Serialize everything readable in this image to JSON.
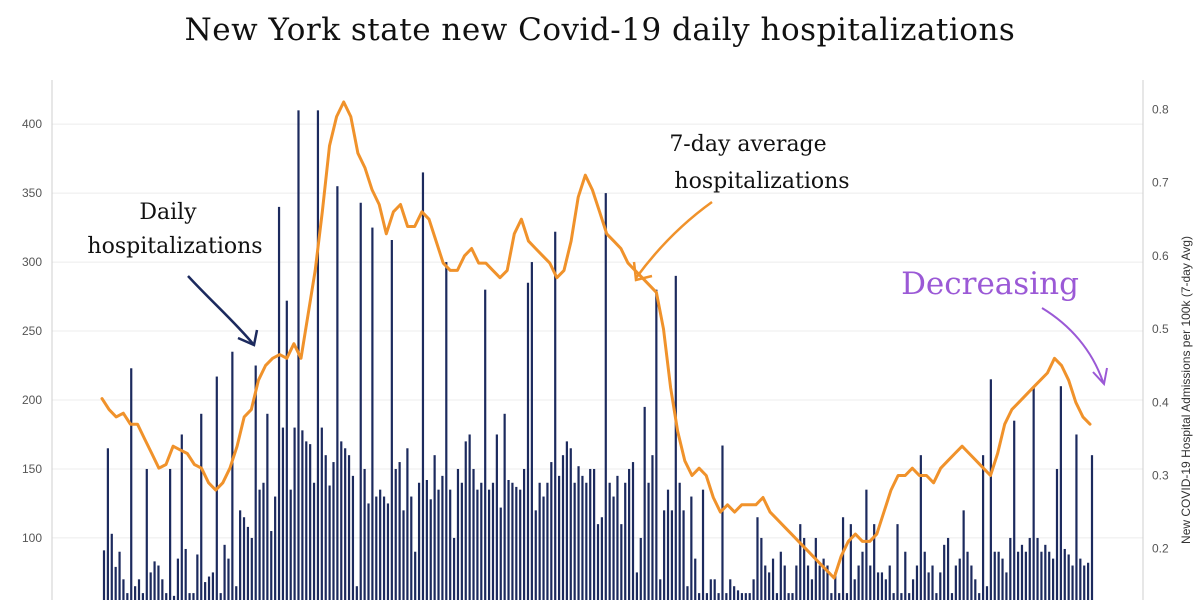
{
  "chart_data": {
    "type": "bar+line",
    "title": "New York state new Covid-19 daily hospitalizations",
    "xlabel": "",
    "ylabel": "",
    "y2label": "New COVID-19 Hospital Admissions per 100k (7-day Avg)",
    "ylim": [
      55,
      432
    ],
    "y2lim": [
      0.13,
      0.84
    ],
    "yticks": [
      100,
      150,
      200,
      250,
      300,
      350,
      400
    ],
    "y2ticks": [
      0.2,
      0.3,
      0.4,
      0.5,
      0.6,
      0.7,
      0.8
    ],
    "grid": true,
    "series": [
      {
        "kind": "bar",
        "axis": "left",
        "values": [
          91,
          165,
          103,
          79,
          90,
          70,
          60,
          223,
          65,
          70,
          60,
          150,
          75,
          83,
          80,
          70,
          60,
          150,
          58,
          85,
          175,
          92,
          60,
          60,
          88,
          190,
          68,
          72,
          75,
          217,
          60,
          95,
          85,
          235,
          65,
          120,
          115,
          108,
          100,
          225,
          135,
          140,
          190,
          105,
          130,
          340,
          180,
          272,
          135,
          180,
          410,
          178,
          170,
          168,
          140,
          410,
          180,
          160,
          138,
          155,
          355,
          170,
          165,
          160,
          145,
          65,
          343,
          150,
          125,
          325,
          130,
          135,
          130,
          125,
          316,
          150,
          155,
          120,
          165,
          130,
          90,
          140,
          365,
          142,
          128,
          160,
          135,
          145,
          300,
          135,
          100,
          150,
          140,
          170,
          175,
          150,
          135,
          140,
          280,
          135,
          140,
          175,
          122,
          190,
          142,
          140,
          137,
          135,
          150,
          285,
          300,
          120,
          140,
          130,
          140,
          155,
          322,
          145,
          160,
          170,
          165,
          140,
          152,
          145,
          140,
          150,
          150,
          110,
          115,
          350,
          140,
          130,
          145,
          110,
          140,
          150,
          155,
          75,
          100,
          195,
          140,
          160,
          280,
          70,
          120,
          135,
          120,
          290,
          140,
          120,
          65,
          130,
          85,
          60,
          135,
          60,
          70,
          70,
          60,
          167,
          60,
          70,
          65,
          62,
          60,
          60,
          60,
          70,
          115,
          100,
          80,
          75,
          85,
          60,
          90,
          80,
          60,
          60,
          80,
          110,
          100,
          80,
          70,
          100,
          80,
          85,
          80,
          60,
          75,
          60,
          115,
          60,
          110,
          70,
          80,
          90,
          135,
          80,
          110,
          75,
          75,
          70,
          80,
          60,
          110,
          60,
          90,
          60,
          70,
          80,
          160,
          90,
          75,
          80,
          60,
          75,
          95,
          100,
          60,
          80,
          85,
          120,
          90,
          80,
          70,
          60,
          160,
          65,
          215,
          90,
          90,
          85,
          75,
          100,
          185,
          90,
          95,
          90,
          100,
          210,
          100,
          90,
          95,
          90,
          85,
          150,
          210,
          92,
          88,
          80,
          175,
          85,
          80,
          82,
          160
        ]
      },
      {
        "kind": "line",
        "axis": "right",
        "values": [
          0.405,
          0.39,
          0.38,
          0.385,
          0.37,
          0.37,
          0.35,
          0.33,
          0.31,
          0.315,
          0.34,
          0.335,
          0.33,
          0.315,
          0.31,
          0.29,
          0.28,
          0.29,
          0.31,
          0.34,
          0.38,
          0.39,
          0.43,
          0.45,
          0.46,
          0.465,
          0.46,
          0.48,
          0.46,
          0.52,
          0.58,
          0.66,
          0.75,
          0.79,
          0.81,
          0.79,
          0.74,
          0.72,
          0.69,
          0.67,
          0.63,
          0.66,
          0.67,
          0.64,
          0.64,
          0.66,
          0.65,
          0.62,
          0.59,
          0.58,
          0.58,
          0.6,
          0.61,
          0.59,
          0.59,
          0.58,
          0.57,
          0.58,
          0.63,
          0.65,
          0.62,
          0.61,
          0.6,
          0.59,
          0.57,
          0.58,
          0.62,
          0.68,
          0.71,
          0.69,
          0.66,
          0.63,
          0.62,
          0.61,
          0.59,
          0.58,
          0.57,
          0.56,
          0.55,
          0.5,
          0.42,
          0.36,
          0.32,
          0.3,
          0.31,
          0.3,
          0.27,
          0.25,
          0.26,
          0.25,
          0.26,
          0.26,
          0.26,
          0.27,
          0.25,
          0.24,
          0.23,
          0.22,
          0.21,
          0.2,
          0.19,
          0.18,
          0.17,
          0.16,
          0.19,
          0.21,
          0.22,
          0.21,
          0.21,
          0.22,
          0.25,
          0.28,
          0.3,
          0.3,
          0.31,
          0.3,
          0.3,
          0.29,
          0.31,
          0.32,
          0.33,
          0.34,
          0.33,
          0.32,
          0.31,
          0.3,
          0.33,
          0.37,
          0.39,
          0.4,
          0.41,
          0.42,
          0.43,
          0.44,
          0.46,
          0.45,
          0.43,
          0.4,
          0.38,
          0.37
        ],
        "color": "#f0922b"
      }
    ],
    "annotations": [
      {
        "text": "Daily",
        "color": "#111111"
      },
      {
        "text": "hospitalizations",
        "color": "#111111"
      },
      {
        "text": "7-day average",
        "color": "#111111"
      },
      {
        "text": "hospitalizations",
        "color": "#111111"
      },
      {
        "text": "Decreasing",
        "color": "#9b59d6"
      }
    ],
    "bar_color": "#1c2a5e",
    "line_color": "#f0922b"
  }
}
